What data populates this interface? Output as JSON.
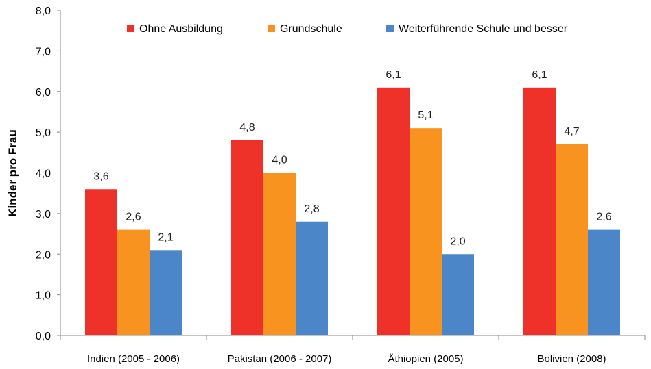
{
  "chart_data": {
    "type": "bar",
    "ylabel": "Kinder pro Frau",
    "xlabel": "",
    "ylim": [
      0,
      8
    ],
    "yticks": [
      "0,0",
      "1,0",
      "2,0",
      "3,0",
      "4,0",
      "5,0",
      "6,0",
      "7,0",
      "8,0"
    ],
    "grid": false,
    "legend_position": "top",
    "categories": [
      "Indien (2005 - 2006)",
      "Pakistan (2006 - 2007)",
      "Äthiopien (2005)",
      "Bolivien (2008)"
    ],
    "series": [
      {
        "name": "Ohne Ausbildung",
        "color": "#ee3129",
        "values": [
          3.6,
          4.8,
          6.1,
          6.1
        ],
        "labels": [
          "3,6",
          "4,8",
          "6,1",
          "6,1"
        ]
      },
      {
        "name": "Grundschule",
        "color": "#f7931e",
        "values": [
          2.6,
          4.0,
          5.1,
          4.7
        ],
        "labels": [
          "2,6",
          "4,0",
          "5,1",
          "4,7"
        ]
      },
      {
        "name": "Weiterführende Schule und besser",
        "color": "#4a86c8",
        "values": [
          2.1,
          2.8,
          2.0,
          2.6
        ],
        "labels": [
          "2,1",
          "2,8",
          "2,0",
          "2,6"
        ]
      }
    ]
  }
}
